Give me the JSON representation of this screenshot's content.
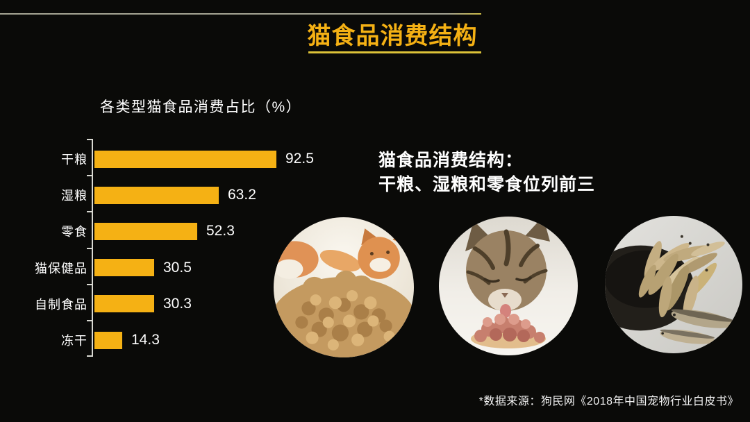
{
  "header": {
    "title": "猫食品消费结构"
  },
  "chart_data": {
    "type": "bar",
    "orientation": "horizontal",
    "title": "各类型猫食品消费占比（%）",
    "categories": [
      "干粮",
      "湿粮",
      "零食",
      "猫保健品",
      "自制食品",
      "冻干"
    ],
    "values": [
      92.5,
      63.2,
      52.3,
      30.5,
      30.3,
      14.3
    ],
    "xlim": [
      0,
      100
    ],
    "grid": false,
    "legend": false,
    "value_labels_shown": true,
    "bar_color": "#F5B114",
    "axis_color": "#D9D9D2"
  },
  "callout": {
    "line1": "猫食品消费结构：",
    "line2": "干粮、湿粮和零食位列前三"
  },
  "photos": [
    {
      "name": "photo-dry-kibble-with-cat"
    },
    {
      "name": "photo-cat-eating-wet-food"
    },
    {
      "name": "photo-dried-small-fish"
    }
  ],
  "footer": {
    "source_note": "*数据来源：狗民网《2018年中国宠物行业白皮书》"
  },
  "colors": {
    "background": "#0A0A08",
    "accent": "#F5B114",
    "divider": "#A5A493",
    "underline": "#DCC238",
    "text": "#FFFFFF"
  }
}
